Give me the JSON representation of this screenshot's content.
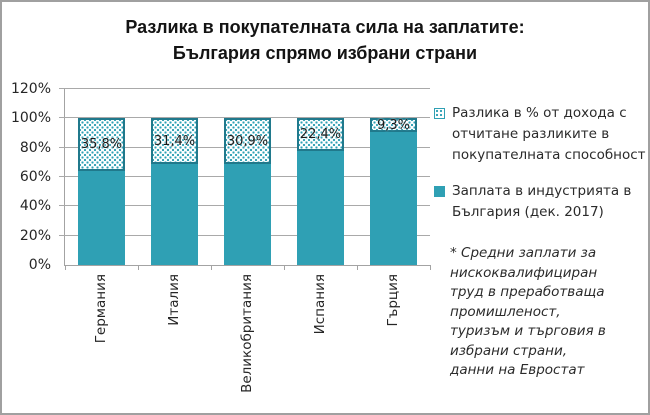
{
  "title": {
    "line1": "Разлика в покупателната сила на заплатите:",
    "line2": "България спрямо избрани страни"
  },
  "chart_data": {
    "type": "bar",
    "stacked": true,
    "title": "Разлика в покупателната сила на заплатите: България спрямо избрани страни",
    "categories": [
      "Германия",
      "Италия",
      "Великобритания",
      "Испания",
      "Гърция"
    ],
    "series": [
      {
        "name": "Заплата в индустрията в България (дек. 2017)",
        "pattern": "solid",
        "values": [
          64.2,
          68.6,
          69.1,
          77.6,
          90.7
        ]
      },
      {
        "name": "Разлика в % от дохода с отчитане разликите в покупателната способност",
        "pattern": "dots",
        "values": [
          35.8,
          31.4,
          30.9,
          22.4,
          9.3
        ],
        "data_labels": [
          "35,8%",
          "31,4%",
          "30,9%",
          "22,4%",
          "9,3%"
        ]
      }
    ],
    "ylim": [
      0,
      120
    ],
    "ytick_values": [
      0,
      20,
      40,
      60,
      80,
      100,
      120
    ],
    "ytick_labels": [
      "0%",
      "20%",
      "40%",
      "60%",
      "80%",
      "100%",
      "120%"
    ],
    "grid": true,
    "legend_position": "right",
    "x_label_rotation": 90
  },
  "legend": {
    "items": [
      {
        "swatch": "dots",
        "label": "Разлика в % от дохода с\nотчитане разликите в\nпокупателната способност"
      },
      {
        "swatch": "solid",
        "label": "Заплата в индустрията в\nБългария (дек. 2017)"
      }
    ]
  },
  "footnote": "* Средни заплати за\nнискоквалифициран\nтруд в преработваща\nпромишленост,\nтуризъм и търговия в\nизбрани страни,\nданни на Евростат",
  "colors": {
    "bar_teal": "#2fa0b4",
    "dotted_border": "#20798c",
    "gridline": "#a9a9a9",
    "axis": "#a3a3a3",
    "text": "#262626",
    "frame_border": "#a0a0a0"
  }
}
